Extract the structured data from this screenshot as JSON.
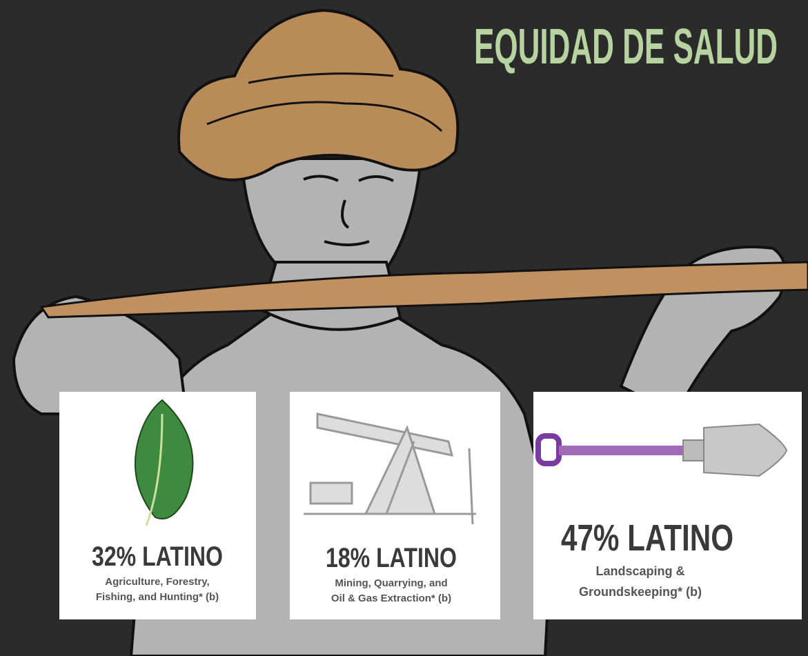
{
  "header": {
    "title": "EQUIDAD DE SALUD"
  },
  "cards": [
    {
      "stat": "32% LATINO",
      "caption": [
        "Agriculture, Forestry,",
        "Fishing, and Hunting* (b)"
      ]
    },
    {
      "stat": "18% LATINO",
      "caption": [
        "Mining, Quarrying, and",
        "Oil & Gas Extraction* (b)"
      ]
    },
    {
      "stat": "47% LATINO",
      "caption": [
        "Landscaping &",
        "Groundskeeping* (b)"
      ]
    }
  ]
}
